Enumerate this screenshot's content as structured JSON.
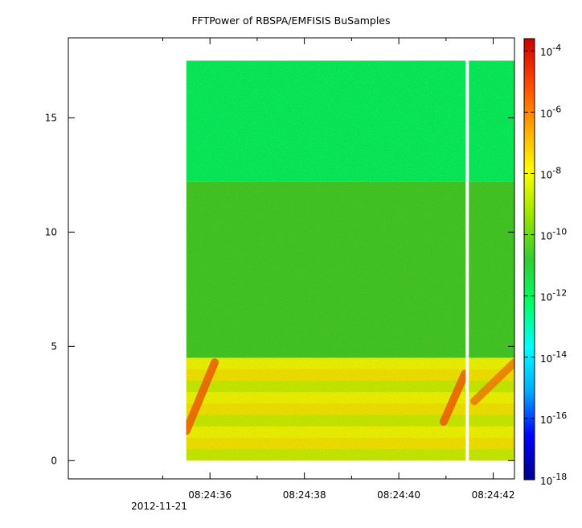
{
  "chart_data": {
    "type": "heatmap",
    "title": "FFTPower of RBSPA/EMFISIS  BuSamples",
    "xlabel": "",
    "ylabel": "",
    "x_ticks": [
      "08:24:36",
      "08:24:38",
      "08:24:40",
      "08:24:42"
    ],
    "x_tick_values_s": [
      36,
      38,
      40,
      42
    ],
    "x_minor_tick_values_s": [
      35,
      37,
      39,
      41
    ],
    "date_label": "2012-11-21",
    "xlim_s": [
      33.0,
      42.45
    ],
    "data_x_range_s": [
      35.5,
      42.45
    ],
    "gap_at_s": 41.45,
    "y_ticks": [
      "0",
      "5",
      "10",
      "15"
    ],
    "y_tick_values": [
      0,
      5,
      10,
      15
    ],
    "ylim": [
      -0.8,
      18.5
    ],
    "data_y_range": [
      0,
      17.5
    ],
    "colorbar": {
      "scale": "log",
      "range_exponents": [
        -18,
        -3.6
      ],
      "tick_exponents": [
        -18,
        -16,
        -14,
        -12,
        -10,
        -8,
        -6,
        -4
      ],
      "tick_labels": [
        "10-18",
        "10-16",
        "10-14",
        "10-12",
        "10-10",
        "10-8",
        "10-6",
        "10-4"
      ],
      "colormap": [
        "#00008c",
        "#0000ff",
        "#00aaff",
        "#00ffff",
        "#00ff66",
        "#33cc33",
        "#99e600",
        "#ffff00",
        "#ffa500",
        "#ff4500",
        "#cc0000"
      ]
    },
    "bands": [
      {
        "name": "upper",
        "y_range": [
          12.2,
          17.5
        ],
        "level_exponent": -12.0
      },
      {
        "name": "middle",
        "y_range": [
          4.5,
          12.2
        ],
        "level_exponent": -10.5
      },
      {
        "name": "low",
        "y_range": [
          0,
          4.5
        ],
        "level_exponent": -8.0
      }
    ],
    "chorus_streaks": [
      {
        "x_start_s": 35.5,
        "x_end_s": 36.1,
        "y_start": 1.3,
        "y_end": 4.3,
        "level_exponent": -5.5
      },
      {
        "x_start_s": 40.95,
        "x_end_s": 41.4,
        "y_start": 1.7,
        "y_end": 3.8,
        "level_exponent": -5.5
      },
      {
        "x_start_s": 41.6,
        "x_end_s": 42.45,
        "y_start": 2.6,
        "y_end": 4.3,
        "level_exponent": -6.0
      }
    ]
  }
}
